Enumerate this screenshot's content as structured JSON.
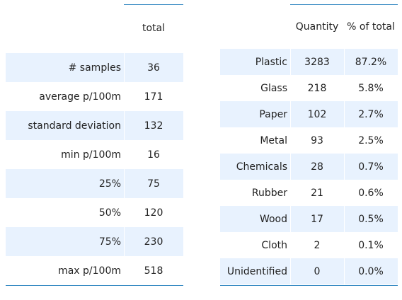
{
  "summary_table": {
    "header": "total",
    "rows": [
      {
        "label": "# samples",
        "value": "36"
      },
      {
        "label": "average p/100m",
        "value": "171"
      },
      {
        "label": "standard deviation",
        "value": "132"
      },
      {
        "label": "min p/100m",
        "value": "16"
      },
      {
        "label": "25%",
        "value": "75"
      },
      {
        "label": "50%",
        "value": "120"
      },
      {
        "label": "75%",
        "value": "230"
      },
      {
        "label": "max p/100m",
        "value": "518"
      }
    ]
  },
  "material_table": {
    "headers": [
      "Quantity",
      "% of total"
    ],
    "rows": [
      {
        "label": "Plastic",
        "quantity": "3283",
        "percent": "87.2%"
      },
      {
        "label": "Glass",
        "quantity": "218",
        "percent": "5.8%"
      },
      {
        "label": "Paper",
        "quantity": "102",
        "percent": "2.7%"
      },
      {
        "label": "Metal",
        "quantity": "93",
        "percent": "2.5%"
      },
      {
        "label": "Chemicals",
        "quantity": "28",
        "percent": "0.7%"
      },
      {
        "label": "Rubber",
        "quantity": "21",
        "percent": "0.6%"
      },
      {
        "label": "Wood",
        "quantity": "17",
        "percent": "0.5%"
      },
      {
        "label": "Cloth",
        "quantity": "2",
        "percent": "0.1%"
      },
      {
        "label": "Unidentified",
        "quantity": "0",
        "percent": "0.0%"
      }
    ]
  },
  "colors": {
    "rule": "#3a8cc4",
    "shaded_row": "#e8f2fe",
    "text": "#222222"
  }
}
